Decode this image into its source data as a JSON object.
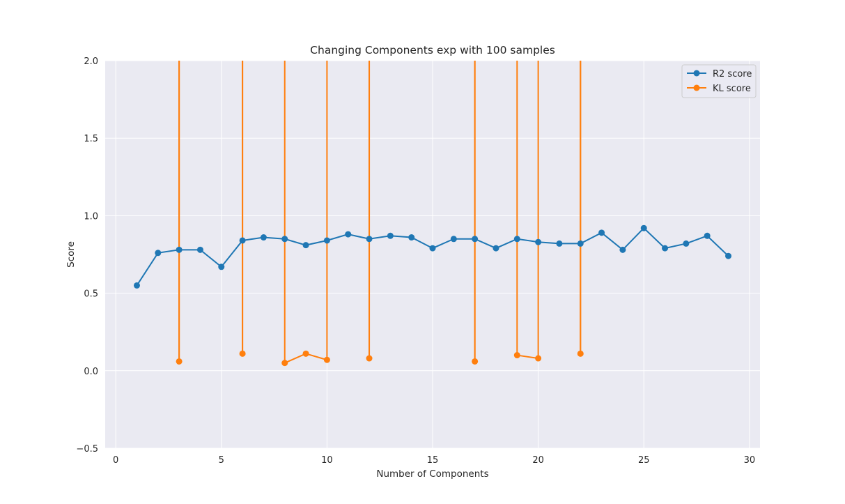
{
  "chart_data": {
    "type": "line",
    "title": "Changing Components exp with 100 samples",
    "xlabel": "Number of Components",
    "ylabel": "Score",
    "xlim": [
      -0.5,
      30.5
    ],
    "ylim": [
      -0.5,
      2.0
    ],
    "xticks": [
      0,
      5,
      10,
      15,
      20,
      25,
      30
    ],
    "yticks": [
      -0.5,
      0.0,
      0.5,
      1.0,
      1.5,
      2.0
    ],
    "ytick_labels": [
      "−0.5",
      "0.0",
      "0.5",
      "1.0",
      "1.5",
      "2.0"
    ],
    "grid": true,
    "legend_position": "top-right",
    "series": [
      {
        "name": "R2 score",
        "color": "#1f77b4",
        "x": [
          1,
          2,
          3,
          4,
          5,
          6,
          7,
          8,
          9,
          10,
          11,
          12,
          13,
          14,
          15,
          16,
          17,
          18,
          19,
          20,
          21,
          22,
          23,
          24,
          25,
          26,
          27,
          28,
          29
        ],
        "y": [
          0.55,
          0.76,
          0.78,
          0.78,
          0.67,
          0.84,
          0.86,
          0.85,
          0.81,
          0.84,
          0.88,
          0.85,
          0.87,
          0.86,
          0.79,
          0.85,
          0.85,
          0.79,
          0.85,
          0.83,
          0.82,
          0.82,
          0.89,
          0.78,
          0.92,
          0.79,
          0.82,
          0.87,
          0.74
        ]
      },
      {
        "name": "KL score",
        "color": "#ff7f0e",
        "x": [
          1,
          2,
          3,
          4,
          5,
          6,
          7,
          8,
          9,
          10,
          11,
          12,
          13,
          14,
          15,
          16,
          17,
          18,
          19,
          20,
          21,
          22,
          23,
          24,
          25,
          26,
          27,
          28,
          29
        ],
        "y": [
          null,
          null,
          0.06,
          null,
          null,
          0.11,
          null,
          0.05,
          0.11,
          0.07,
          null,
          0.08,
          null,
          null,
          null,
          null,
          0.06,
          null,
          0.1,
          0.08,
          null,
          0.11,
          null,
          null,
          null,
          null,
          null,
          null,
          null
        ]
      }
    ]
  }
}
